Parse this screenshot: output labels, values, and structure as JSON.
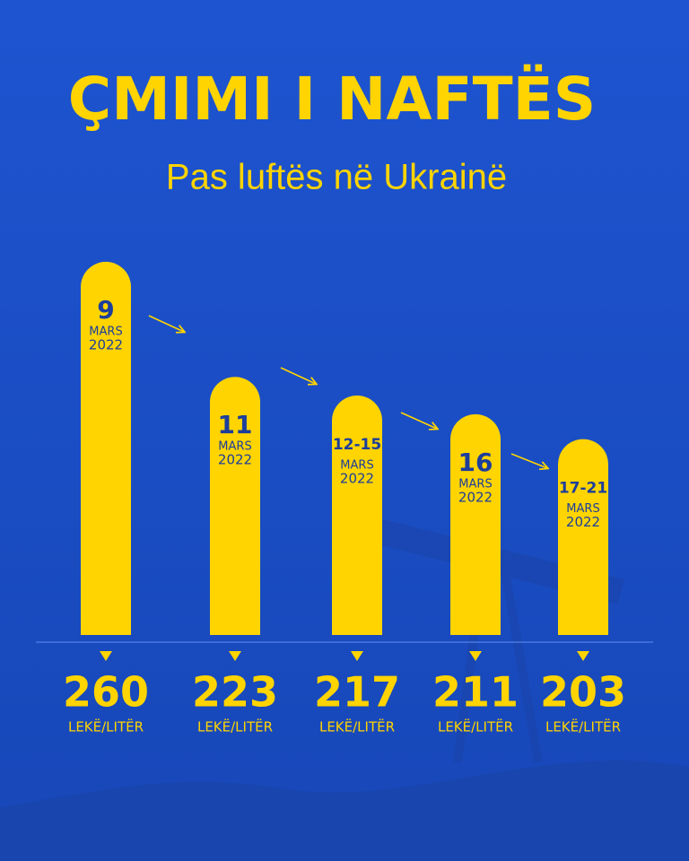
{
  "chart_data": {
    "type": "bar",
    "title": "ÇMIMI I NAFTËS",
    "subtitle": "Pas luftës në Ukrainë",
    "categories": [
      "9",
      "11",
      "12-15",
      "16",
      "17-21"
    ],
    "month": "MARS",
    "year": "2022",
    "values": [
      260,
      223,
      217,
      211,
      203
    ],
    "unit": "LEKË/LITËR",
    "color": "#ffd400",
    "ylim": [
      140,
      262
    ]
  }
}
